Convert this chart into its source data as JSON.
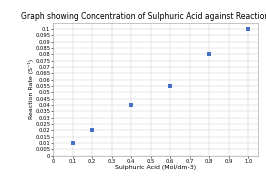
{
  "title": "Graph showing Concentration of Sulphuric Acid against Reaction Rate",
  "xlabel": "Sulphuric Acid (Mol/dm-3)",
  "ylabel": "Reaction Rate (S⁻¹)",
  "x_data": [
    0.1,
    0.2,
    0.4,
    0.6,
    0.8,
    1.0
  ],
  "y_data": [
    0.01,
    0.02,
    0.04,
    0.055,
    0.08,
    0.1
  ],
  "xlim": [
    0,
    1.05
  ],
  "ylim": [
    0,
    0.105
  ],
  "xticks": [
    0,
    0.1,
    0.2,
    0.3,
    0.4,
    0.5,
    0.6,
    0.7,
    0.8,
    0.9,
    1.0
  ],
  "yticks": [
    0,
    0.005,
    0.01,
    0.015,
    0.02,
    0.025,
    0.03,
    0.035,
    0.04,
    0.045,
    0.05,
    0.055,
    0.06,
    0.065,
    0.07,
    0.075,
    0.08,
    0.085,
    0.09,
    0.095,
    0.1
  ],
  "marker_color": "#4472c4",
  "marker": "s",
  "marker_size": 3,
  "background_color": "#ffffff",
  "grid_color": "#c8c8c8",
  "title_fontsize": 5.5,
  "label_fontsize": 4.5,
  "tick_fontsize": 3.8
}
